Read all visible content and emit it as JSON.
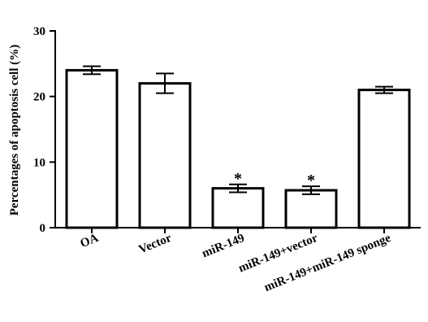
{
  "chart_data": {
    "type": "bar",
    "title": "",
    "xlabel": "",
    "ylabel": "Percentages of apoptosis cell (%)",
    "ylim": [
      0,
      30
    ],
    "yticks": [
      "0",
      "10",
      "20",
      "30"
    ],
    "categories": [
      "OA",
      "Vector",
      "miR-149",
      "miR-149+vector",
      "miR-149+miR-149 sponge"
    ],
    "values": [
      24.0,
      22.0,
      6.0,
      5.7,
      21.0
    ],
    "errors": [
      0.6,
      1.5,
      0.6,
      0.6,
      0.5
    ],
    "annotations": [
      "",
      "",
      "*",
      "*",
      ""
    ],
    "grid": false,
    "bar_fill": "#ffffff",
    "bar_stroke": "#000000"
  }
}
